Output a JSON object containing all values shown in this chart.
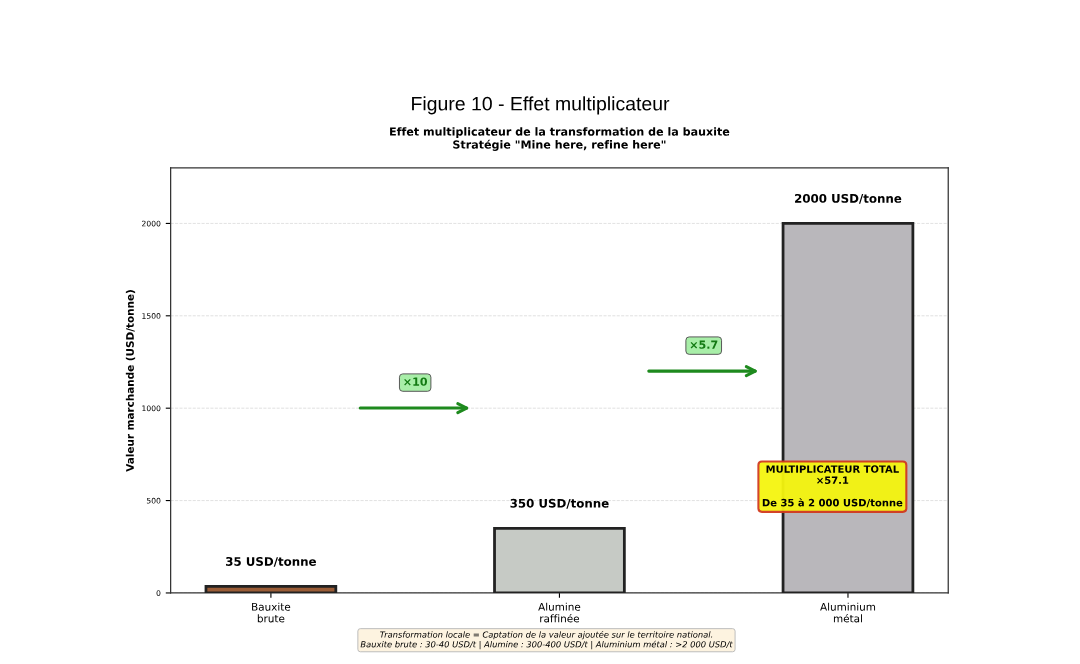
{
  "chart_data": {
    "type": "bar",
    "title": "Figure 10 - Effet multiplicateur",
    "subtitle": "Effet multiplicateur de la transformation de la bauxite\nStratégie \"Mine here, refine here\"",
    "ylabel": "Valeur marchande (USD/tonne)",
    "categories": [
      "Bauxite\nbrute",
      "Alumine\nraffinée",
      "Aluminium\nmétal"
    ],
    "values": [
      35,
      350,
      2000
    ],
    "colors": [
      "#9a5c36",
      "#c6cac5",
      "#b9b7bb"
    ],
    "value_labels": [
      "35 USD/tonne",
      "350 USD/tonne",
      "2000 USD/tonne"
    ],
    "ylim": [
      0,
      2300
    ],
    "yticks": [
      0,
      500,
      1000,
      1500,
      2000
    ],
    "grid": "y",
    "annotations": [
      "×10",
      "×5.7",
      "MULTIPLICATEUR TOTAL\n×57.1\n\nDe 35 à 2 000 USD/tonne",
      "Transformation locale = Captation de la valeur ajoutée sur le territoire national.\nBauxite brute : 30-40 USD/t | Alumine : 300-400 USD/t | Aluminium métal : >2 000 USD/t"
    ]
  }
}
